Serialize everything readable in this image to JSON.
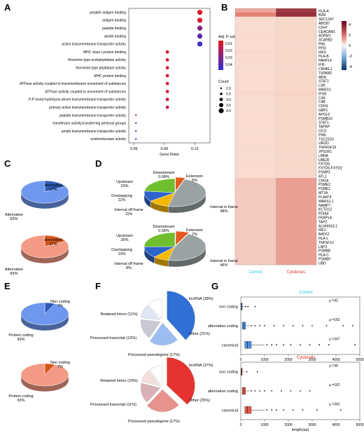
{
  "panels": {
    "A": {
      "label": "A",
      "chart_data": {
        "type": "scatter",
        "xlabel": "Gene Ratio",
        "xlim": [
          0.055,
          0.135
        ],
        "xticks": [
          0.06,
          0.09,
          0.12
        ],
        "categories": [
          "peptide antigen binding",
          "antigen binding",
          "peptide binding",
          "amide binding",
          "active transmembrane transporter activity",
          "MHC class I protein binding",
          "threonine-type endopeptidase activity",
          "threonine-type peptidase activity",
          "MHC protein binding",
          "ATPase activity coupled to transmembrane movement of substances",
          "ATPase activity coupled to movement of substances",
          "P-P-bond-hydrolysis-driven transmembrane transporter activity",
          "primary active transmembrane transporter activity",
          "peptide transmembrane transporter activity",
          "transferase activity,transferring pentosyl groups",
          "amide transmembrane transporter activity",
          "oxidoreductase activity"
        ],
        "points": [
          {
            "x": 0.125,
            "p": 0.001,
            "count": 4
          },
          {
            "x": 0.125,
            "p": 0.002,
            "count": 4
          },
          {
            "x": 0.125,
            "p": 0.025,
            "count": 4
          },
          {
            "x": 0.125,
            "p": 0.035,
            "count": 4
          },
          {
            "x": 0.125,
            "p": 0.042,
            "count": 4
          },
          {
            "x": 0.093,
            "p": 0.002,
            "count": 3
          },
          {
            "x": 0.093,
            "p": 0.003,
            "count": 3
          },
          {
            "x": 0.093,
            "p": 0.003,
            "count": 3
          },
          {
            "x": 0.093,
            "p": 0.004,
            "count": 3
          },
          {
            "x": 0.093,
            "p": 0.006,
            "count": 3
          },
          {
            "x": 0.093,
            "p": 0.006,
            "count": 3
          },
          {
            "x": 0.093,
            "p": 0.008,
            "count": 3
          },
          {
            "x": 0.093,
            "p": 0.01,
            "count": 3
          },
          {
            "x": 0.062,
            "p": 0.015,
            "count": 2
          },
          {
            "x": 0.062,
            "p": 0.03,
            "count": 2
          },
          {
            "x": 0.062,
            "p": 0.035,
            "count": 2
          },
          {
            "x": 0.062,
            "p": 0.045,
            "count": 2
          }
        ],
        "color_legend": {
          "title": "Adj. P-value",
          "ticks": [
            "0.01",
            "0.02",
            "0.03",
            "0.04"
          ],
          "range": [
            0.0,
            0.045
          ]
        },
        "size_legend": {
          "title": "Count",
          "ticks": [
            "2.0",
            "2.5",
            "3.0",
            "3.5",
            "4.0"
          ]
        }
      }
    },
    "B": {
      "label": "B",
      "chart_data": {
        "type": "heatmap",
        "columns": [
          "Control",
          "Cytokines"
        ],
        "genes": [
          "HLA-A",
          "B2M",
          "SEC12A7",
          "ABCB7",
          "CD47",
          "CEACAM1",
          "ADRM1",
          "SCARB2",
          "PML",
          "PPI3",
          "IRF9",
          "HLA-B",
          "PARP14",
          "IFI6",
          "CRNKL1",
          "TSPAN2",
          "MDK",
          "STAT2",
          "LSR",
          "WARS1",
          "IFI30",
          "C4A",
          "C4B",
          "CDH1",
          "GBP1",
          "APOL6",
          "PSMB10",
          "STAT1",
          "TAPBP",
          "GCG",
          "PNN",
          "TSC22D3",
          "UROD",
          "TNFRSF19",
          "VPS26C",
          "LMNA",
          "UBE2F",
          "FXYD6",
          "FXYD6-FXYD2",
          "PXMP2",
          "ATL1",
          "CHGA",
          "PSME2",
          "PSME1",
          "MT2A",
          "PLAAT4",
          "WARS1.1",
          "NAMPT",
          "KCTD12",
          "PDIA4",
          "FKBP1A",
          "TAP2",
          "AL669918.1",
          "IRF1",
          "BATF2",
          "HLA-L",
          "TNFSF10",
          "LAP3",
          "PSMB8",
          "HLA-C",
          "PSMB9",
          "UBD"
        ],
        "values": [
          [
            1.4,
            3.8
          ],
          [
            2.3,
            4.0
          ],
          [
            0.2,
            0.3
          ],
          [
            0.2,
            0.3
          ],
          [
            0.2,
            0.3
          ],
          [
            0.2,
            0.3
          ],
          [
            0.2,
            0.3
          ],
          [
            0.2,
            0.3
          ],
          [
            0.2,
            0.3
          ],
          [
            0.2,
            0.3
          ],
          [
            0.3,
            0.3
          ],
          [
            0.2,
            0.3
          ],
          [
            0.2,
            0.3
          ],
          [
            0.2,
            0.3
          ],
          [
            0.2,
            0.3
          ],
          [
            0.2,
            0.3
          ],
          [
            0.2,
            0.3
          ],
          [
            0.2,
            0.3
          ],
          [
            0.2,
            0.3
          ],
          [
            0.2,
            0.3
          ],
          [
            0.3,
            0.4
          ],
          [
            0.2,
            0.3
          ],
          [
            0.2,
            0.3
          ],
          [
            0.2,
            0.3
          ],
          [
            0.2,
            0.3
          ],
          [
            0.2,
            0.3
          ],
          [
            0.2,
            0.3
          ],
          [
            0.2,
            0.3
          ],
          [
            0.2,
            0.3
          ],
          [
            0.2,
            0.3
          ],
          [
            0.2,
            0.3
          ],
          [
            0.2,
            0.3
          ],
          [
            0.2,
            0.3
          ],
          [
            0.2,
            0.3
          ],
          [
            0.2,
            0.3
          ],
          [
            0.2,
            0.3
          ],
          [
            0.2,
            0.3
          ],
          [
            0.2,
            0.3
          ],
          [
            0.2,
            0.3
          ],
          [
            0.2,
            0.3
          ],
          [
            0.2,
            0.3
          ],
          [
            0.6,
            1.6
          ],
          [
            0.6,
            1.6
          ],
          [
            0.6,
            1.6
          ],
          [
            0.6,
            1.6
          ],
          [
            0.6,
            1.6
          ],
          [
            0.6,
            1.6
          ],
          [
            0.6,
            1.6
          ],
          [
            0.6,
            1.6
          ],
          [
            0.6,
            1.6
          ],
          [
            0.6,
            1.6
          ],
          [
            0.6,
            1.6
          ],
          [
            0.6,
            1.6
          ],
          [
            0.6,
            1.6
          ],
          [
            0.6,
            1.6
          ],
          [
            0.6,
            1.6
          ],
          [
            0.6,
            1.6
          ],
          [
            0.6,
            1.6
          ],
          [
            0.6,
            1.6
          ],
          [
            0.6,
            1.6
          ],
          [
            0.6,
            1.6
          ],
          [
            0.6,
            1.6
          ]
        ],
        "legend_ticks": [
          "4",
          "2",
          "0",
          "-2",
          "-4"
        ],
        "legend_range": [
          -5,
          5
        ],
        "colors": {
          "high": "#67001f",
          "low": "#053061",
          "mid": "#f7f7f7"
        }
      }
    },
    "C": {
      "label": "C",
      "pies": [
        {
          "type": "pie",
          "slices": [
            {
              "label": "Annotated",
              "pct": "17%",
              "value": 17
            },
            {
              "label": "Alternative",
              "pct": "83%",
              "value": 83
            }
          ],
          "colors": [
            "#2f5bb5",
            "#6f97ee"
          ]
        },
        {
          "type": "pie",
          "slices": [
            {
              "label": "Annotated",
              "pct": "17%",
              "value": 17
            },
            {
              "label": "Alternative",
              "pct": "83%",
              "value": 83
            }
          ],
          "colors": [
            "#d4561a",
            "#f39a84"
          ]
        }
      ]
    },
    "D": {
      "label": "D",
      "pies": [
        {
          "type": "pie",
          "slices": [
            {
              "label": "Downstream",
              "pct": "0.08%",
              "value": 0.08,
              "color": "#7a4a26"
            },
            {
              "label": "Extension",
              "pct": "5%",
              "value": 5,
              "color": "#e35a1f"
            },
            {
              "label": "Internal in frame",
              "pct": "48%",
              "value": 48,
              "color": "#9aa3a3"
            },
            {
              "label": "Internal off frame",
              "pct": "11%",
              "value": 11,
              "color": "#f5b800"
            },
            {
              "label": "Overlapping",
              "pct": "12%",
              "value": 12,
              "color": "#2e63c9"
            },
            {
              "label": "Upstream",
              "pct": "23%",
              "value": 23,
              "color": "#6fbf2e"
            }
          ]
        },
        {
          "type": "pie",
          "slices": [
            {
              "label": "Downstream",
              "pct": "0.08%",
              "value": 0.08,
              "color": "#7a4a26"
            },
            {
              "label": "Extension",
              "pct": "7%",
              "value": 7,
              "color": "#e35a1f"
            },
            {
              "label": "Internal in frame",
              "pct": "46%",
              "value": 46,
              "color": "#9aa3a3"
            },
            {
              "label": "Internal off frame",
              "pct": "8%",
              "value": 8,
              "color": "#f5b800"
            },
            {
              "label": "Overlapping",
              "pct": "13%",
              "value": 13,
              "color": "#2e63c9"
            },
            {
              "label": "Upstream",
              "pct": "25%",
              "value": 25,
              "color": "#6fbf2e"
            }
          ]
        }
      ]
    },
    "E": {
      "label": "E",
      "pies": [
        {
          "type": "pie",
          "slices": [
            {
              "label": "Non coding",
              "pct": "7%",
              "value": 7
            },
            {
              "label": "Protein coding",
              "pct": "93%",
              "value": 93
            }
          ],
          "colors": [
            "#2f5bb5",
            "#6f97ee"
          ]
        },
        {
          "type": "pie",
          "slices": [
            {
              "label": "Non coding",
              "pct": "7%",
              "value": 7
            },
            {
              "label": "Protein coding",
              "pct": "93%",
              "value": 93
            }
          ],
          "colors": [
            "#d4561a",
            "#f39a84"
          ]
        }
      ]
    },
    "F": {
      "label": "F",
      "pies": [
        {
          "type": "pie",
          "slices": [
            {
              "label": "lncRNA (38%)",
              "value": 38,
              "color": "#2f6fd6"
            },
            {
              "label": "Other (21%)",
              "value": 21,
              "color": "#9cbdf2"
            },
            {
              "label": "Processed pseudogene (17%)",
              "value": 17,
              "color": "#c9c9d6"
            },
            {
              "label": "Processed transcript (12%)",
              "value": 12,
              "color": "#dfe6f2"
            },
            {
              "label": "Retained intron (11%)",
              "value": 11,
              "color": "#ffffff"
            }
          ]
        },
        {
          "type": "pie",
          "slices": [
            {
              "label": "lncRNA (37%)",
              "value": 37,
              "color": "#e6332f"
            },
            {
              "label": "Other (25%)",
              "value": 25,
              "color": "#e8928d"
            },
            {
              "label": "Processed pseudogene (17%)",
              "value": 17,
              "color": "#d8b0b6"
            },
            {
              "label": "Processed transcript (11%)",
              "value": 11,
              "color": "#f2dedc"
            },
            {
              "label": "Retained intron (10%)",
              "value": 10,
              "color": "#ffffff"
            }
          ]
        }
      ]
    },
    "G": {
      "label": "G",
      "xlabel": "length(aa)",
      "xticks": [
        0,
        1000,
        2000,
        3000,
        4000,
        5000
      ],
      "xlim": [
        0,
        5000
      ],
      "categories": [
        "non coding",
        "alternative coding",
        "canonical"
      ],
      "boxes": [
        {
          "title": "Control",
          "title_color": "#2ec4d6",
          "fill": "#4a8fe6",
          "groups": [
            {
              "name": "non coding",
              "mu": "μ =42",
              "q1": 10,
              "median": 28,
              "q3": 60,
              "whisker_hi": 120,
              "outliers": [
                200,
                300,
                600
              ]
            },
            {
              "name": "alternative coding",
              "mu": "μ =162",
              "q1": 60,
              "median": 120,
              "q3": 200,
              "whisker_hi": 380,
              "outliers": [
                450,
                600,
                800,
                1000,
                1400,
                1800,
                2200,
                2600,
                3000,
                3600,
                4300,
                4700
              ]
            },
            {
              "name": "canonical",
              "mu": "μ =347",
              "q1": 170,
              "median": 280,
              "q3": 440,
              "whisker_hi": 1000,
              "outliers": [
                1100,
                1300,
                1500,
                1800,
                2100,
                2500,
                2900,
                3300,
                3700,
                4800
              ]
            }
          ]
        },
        {
          "title": "Cytokines",
          "title_color": "#d93030",
          "fill": "#e4584a",
          "groups": [
            {
              "name": "non coding",
              "mu": "μ =44",
              "q1": 10,
              "median": 28,
              "q3": 60,
              "whisker_hi": 120,
              "outliers": [
                250,
                700
              ]
            },
            {
              "name": "alternative coding",
              "mu": "μ =162",
              "q1": 60,
              "median": 120,
              "q3": 200,
              "whisker_hi": 400,
              "outliers": [
                450,
                600,
                800,
                1000,
                1300,
                1700,
                2100,
                2500,
                2900
              ]
            },
            {
              "name": "canonical",
              "mu": "μ =342",
              "q1": 170,
              "median": 280,
              "q3": 440,
              "whisker_hi": 1000,
              "outliers": [
                1100,
                1300,
                1500,
                1800,
                2200,
                2600,
                3200,
                4200
              ]
            }
          ]
        }
      ]
    }
  }
}
